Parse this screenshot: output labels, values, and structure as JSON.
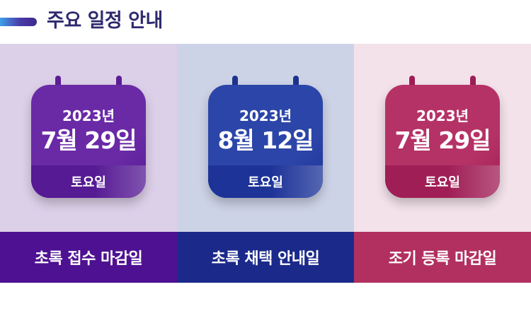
{
  "header": {
    "title": "주요 일정 안내"
  },
  "panels": [
    {
      "year": "2023년",
      "date": "7월 29일",
      "weekday": "토요일",
      "label": "초록 접수 마감일",
      "colors": {
        "background": "#dccfe8",
        "calendar": "#6a2aa6",
        "calendar_foot": "#561a94",
        "ring": "#5a1e96",
        "label_bg": "#4e1192"
      }
    },
    {
      "year": "2023년",
      "date": "8월 12일",
      "weekday": "토요일",
      "label": "초록 채택 안내일",
      "colors": {
        "background": "#cdd3e6",
        "calendar": "#2c45a8",
        "calendar_foot": "#1d3398",
        "ring": "#1e338c",
        "label_bg": "#1b2a8a"
      }
    },
    {
      "year": "2023년",
      "date": "7월 29일",
      "weekday": "토요일",
      "label": "조기 등록 마감일",
      "colors": {
        "background": "#f3e2ea",
        "calendar": "#b53266",
        "calendar_foot": "#a01e56",
        "ring": "#9e1f55",
        "label_bg": "#b2305f"
      }
    }
  ],
  "icons": {
    "calendar": "calendar-icon",
    "header_accent": "accent-bar"
  }
}
